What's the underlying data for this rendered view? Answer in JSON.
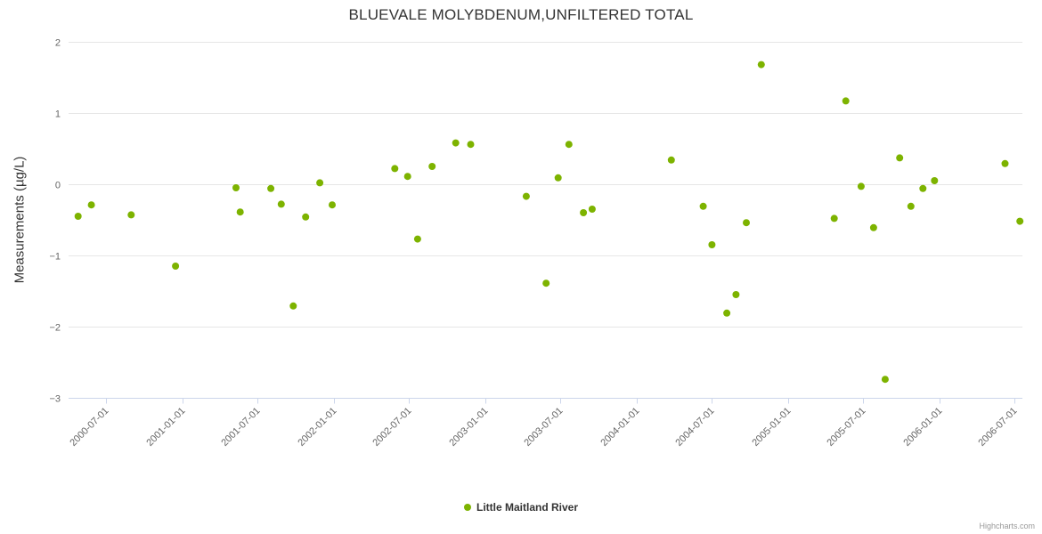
{
  "credits": "Highcharts.com",
  "chart_data": {
    "type": "scatter",
    "title": "BLUEVALE MOLYBDENUM,UNFILTERED TOTAL",
    "xlabel": "",
    "ylabel": "Measurements (µg/L)",
    "ylim": [
      -3,
      2
    ],
    "y_ticks": [
      2,
      1,
      0,
      -1,
      -2,
      -3
    ],
    "x_range": [
      "2000-04-01",
      "2006-07-20"
    ],
    "x_ticks": [
      "2000-07-01",
      "2001-01-01",
      "2001-07-01",
      "2002-01-01",
      "2002-07-01",
      "2003-01-01",
      "2003-07-01",
      "2004-01-01",
      "2004-07-01",
      "2005-01-01",
      "2005-07-01",
      "2006-01-01",
      "2006-07-01"
    ],
    "grid": true,
    "legend_position": "bottom",
    "marker_color": "#7db300",
    "grid_color": "#e6e6e6",
    "axis_line_color": "#ccd6eb",
    "tick_label_color": "#666666",
    "series": [
      {
        "name": "Little Maitland River",
        "points": [
          {
            "x": "2000-04-24",
            "y": -0.45
          },
          {
            "x": "2000-05-26",
            "y": -0.29
          },
          {
            "x": "2000-08-30",
            "y": -0.43
          },
          {
            "x": "2000-12-15",
            "y": -1.15
          },
          {
            "x": "2001-05-10",
            "y": -0.05
          },
          {
            "x": "2001-05-20",
            "y": -0.39
          },
          {
            "x": "2001-08-02",
            "y": -0.06
          },
          {
            "x": "2001-08-27",
            "y": -0.28
          },
          {
            "x": "2001-09-25",
            "y": -1.71
          },
          {
            "x": "2001-10-25",
            "y": -0.46
          },
          {
            "x": "2001-11-28",
            "y": 0.02
          },
          {
            "x": "2001-12-28",
            "y": -0.29
          },
          {
            "x": "2002-05-28",
            "y": 0.22
          },
          {
            "x": "2002-06-28",
            "y": 0.11
          },
          {
            "x": "2002-07-22",
            "y": -0.77
          },
          {
            "x": "2002-08-26",
            "y": 0.25
          },
          {
            "x": "2002-10-22",
            "y": 0.58
          },
          {
            "x": "2002-11-27",
            "y": 0.56
          },
          {
            "x": "2003-04-10",
            "y": -0.17
          },
          {
            "x": "2003-05-28",
            "y": -1.39
          },
          {
            "x": "2003-06-26",
            "y": 0.09
          },
          {
            "x": "2003-07-22",
            "y": 0.56
          },
          {
            "x": "2003-08-26",
            "y": -0.4
          },
          {
            "x": "2003-09-16",
            "y": -0.35
          },
          {
            "x": "2004-03-25",
            "y": 0.34
          },
          {
            "x": "2004-06-10",
            "y": -0.31
          },
          {
            "x": "2004-07-01",
            "y": -0.85
          },
          {
            "x": "2004-08-06",
            "y": -1.81
          },
          {
            "x": "2004-08-28",
            "y": -1.55
          },
          {
            "x": "2004-09-22",
            "y": -0.54
          },
          {
            "x": "2004-10-28",
            "y": 1.68
          },
          {
            "x": "2005-04-22",
            "y": -0.48
          },
          {
            "x": "2005-05-20",
            "y": 1.17
          },
          {
            "x": "2005-06-26",
            "y": -0.03
          },
          {
            "x": "2005-07-26",
            "y": -0.61
          },
          {
            "x": "2005-08-23",
            "y": -2.74
          },
          {
            "x": "2005-09-27",
            "y": 0.37
          },
          {
            "x": "2005-10-24",
            "y": -0.31
          },
          {
            "x": "2005-11-22",
            "y": -0.06
          },
          {
            "x": "2005-12-20",
            "y": 0.05
          },
          {
            "x": "2006-06-08",
            "y": 0.29
          },
          {
            "x": "2006-07-14",
            "y": -0.52
          }
        ]
      }
    ]
  }
}
